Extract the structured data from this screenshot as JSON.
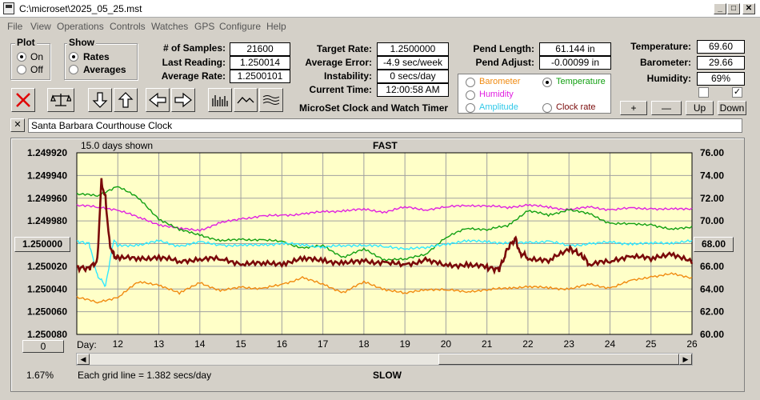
{
  "window": {
    "title": "C:\\microset\\2025_05_25.mst",
    "min": "_",
    "max": "□",
    "close": "✕"
  },
  "menu": [
    "File",
    "View",
    "Operations",
    "Controls",
    "Watches",
    "GPS",
    "Configure",
    "Help"
  ],
  "plot": {
    "label": "Plot",
    "on": "On",
    "off": "Off"
  },
  "show": {
    "label": "Show",
    "rates": "Rates",
    "averages": "Averages"
  },
  "stats": {
    "samples_label": "# of Samples:",
    "samples": "21600",
    "last_label": "Last Reading:",
    "last": "1.250014",
    "avg_label": "Average Rate:",
    "avg": "1.2500101",
    "target_label": "Target Rate:",
    "target": "1.2500000",
    "error_label": "Average Error:",
    "error": "-4.9 sec/week",
    "instab_label": "Instability:",
    "instab": "0 secs/day",
    "time_label": "Current Time:",
    "time": "12:00:58 AM",
    "pend_label": "Pend Length:",
    "pend": "61.144 in",
    "adjust_label": "Pend Adjust:",
    "adjust": "-0.00099 in",
    "temp_label": "Temperature:",
    "temp": "69.60",
    "baro_label": "Barometer:",
    "baro": "29.66",
    "hum_label": "Humidity:",
    "hum": "69%"
  },
  "app_name": "MicroSet Clock and Watch Timer",
  "series_select": {
    "barometer": "Barometer",
    "temperature": "Temperature",
    "humidity": "Humidity",
    "amplitude": "Amplitude",
    "clock_rate": "Clock rate"
  },
  "adjust_buttons": {
    "plus": "+",
    "minus": "—",
    "up": "Up",
    "down": "Down"
  },
  "clock_name": "Santa Barbara Courthouse Clock",
  "header": {
    "days_shown": "15.0 days shown",
    "fast": "FAST",
    "slow": "SLOW",
    "grid_note": "Each grid line = 1.382 secs/day",
    "pct": "1.67%",
    "left_btn": "1.250000",
    "right_btn": "68.00",
    "zero_btn": "0",
    "day_label": "Day:"
  },
  "colors": {
    "rate": "#7a0a0a",
    "temperature": "#12a012",
    "barometer": "#f08a10",
    "humidity": "#e020e0",
    "amplitude": "#30e8ff",
    "plot_bg": "#ffffc8"
  },
  "chart_data": {
    "type": "line",
    "x_label": "Day:",
    "x_ticks": [
      "12",
      "13",
      "14",
      "15",
      "16",
      "17",
      "18",
      "19",
      "20",
      "21",
      "22",
      "23",
      "24",
      "25",
      "26"
    ],
    "x_range": [
      11,
      26
    ],
    "y_left_ticks": [
      "1.249920",
      "1.249940",
      "1.249960",
      "1.249980",
      "1.250000",
      "1.250020",
      "1.250040",
      "1.250060",
      "1.250080"
    ],
    "y_left_range": [
      1.24992,
      1.25008
    ],
    "y_left_reversed": true,
    "y_right_ticks": [
      "76.00",
      "74.00",
      "72.00",
      "70.00",
      "68.00",
      "66.00",
      "64.00",
      "62.00",
      "60.00"
    ],
    "y_right_range": [
      60,
      76
    ],
    "grid": true,
    "series": [
      {
        "key": "rate",
        "x": [
          11,
          11.3,
          11.5,
          11.6,
          11.7,
          11.8,
          11.9,
          12,
          12.5,
          13,
          13.5,
          14,
          14.5,
          15,
          15.5,
          16,
          16.5,
          17,
          17.5,
          18,
          18.5,
          19,
          19.5,
          20,
          20.5,
          21,
          21.3,
          21.5,
          21.7,
          21.8,
          22,
          22.5,
          23,
          23.3,
          23.5,
          24,
          24.5,
          25,
          25.5,
          26
        ],
        "y": [
          1.250021,
          1.250022,
          1.250015,
          1.249945,
          1.24996,
          1.25,
          1.25001,
          1.250013,
          1.250013,
          1.250012,
          1.250016,
          1.250013,
          1.250014,
          1.250017,
          1.250018,
          1.250017,
          1.250014,
          1.250014,
          1.250018,
          1.250015,
          1.250017,
          1.250019,
          1.250014,
          1.25002,
          1.250018,
          1.250021,
          1.250023,
          1.250005,
          1.249995,
          1.250008,
          1.250012,
          1.250016,
          1.250004,
          1.25001,
          1.250018,
          1.250016,
          1.25001,
          1.250014,
          1.250008,
          1.250017
        ]
      },
      {
        "key": "temperature",
        "x": [
          11,
          11.5,
          12,
          12.5,
          13,
          13.5,
          14,
          14.5,
          15,
          15.5,
          16,
          16.5,
          17,
          17.5,
          18,
          18.5,
          19,
          19.5,
          20,
          20.5,
          21,
          21.5,
          22,
          22.5,
          23,
          23.5,
          24,
          24.5,
          25,
          25.5,
          26
        ],
        "y": [
          72.4,
          72.2,
          73.1,
          72.0,
          70.2,
          69.2,
          68.8,
          68.2,
          68.4,
          68.3,
          68.2,
          67.6,
          67.8,
          66.8,
          67.5,
          66.6,
          66.6,
          67.1,
          68.5,
          69.4,
          69.2,
          69.6,
          70.9,
          70.5,
          71.0,
          70.6,
          69.8,
          69.7,
          69.7,
          69.2,
          69.5
        ]
      },
      {
        "key": "barometer",
        "x": [
          11,
          11.5,
          12,
          12.5,
          13,
          13.5,
          14,
          14.5,
          15,
          15.5,
          16,
          16.5,
          17,
          17.5,
          18,
          18.5,
          19,
          19.5,
          20,
          20.5,
          21,
          21.5,
          22,
          22.5,
          23,
          23.5,
          24,
          24.5,
          25,
          25.5,
          26
        ],
        "y": [
          63.3,
          62.8,
          63.3,
          64.6,
          64.4,
          63.6,
          64.6,
          63.8,
          64.2,
          64.0,
          64.4,
          65.0,
          64.4,
          63.7,
          64.6,
          64.0,
          63.6,
          64.0,
          63.9,
          63.8,
          63.9,
          64.1,
          64.2,
          64.1,
          64.0,
          64.4,
          64.1,
          64.7,
          65.1,
          65.3,
          65.0
        ]
      },
      {
        "key": "humidity",
        "x": [
          11,
          11.5,
          12,
          12.5,
          13,
          13.5,
          14,
          14.5,
          15,
          15.5,
          16,
          16.5,
          17,
          17.5,
          18,
          18.5,
          19,
          19.5,
          20,
          20.5,
          21,
          21.5,
          22,
          22.5,
          23,
          23.5,
          24,
          24.5,
          25,
          25.5,
          26
        ],
        "y": [
          71.4,
          71.2,
          71.0,
          70.3,
          69.7,
          69.3,
          69.2,
          69.8,
          70.2,
          70.4,
          70.5,
          70.6,
          70.8,
          70.9,
          71.0,
          70.8,
          71.2,
          71.0,
          71.2,
          71.4,
          71.3,
          71.2,
          71.4,
          71.2,
          71.0,
          71.2,
          71.0,
          71.1,
          71.1,
          71.0,
          71.1
        ]
      },
      {
        "key": "amplitude",
        "x": [
          11,
          11.3,
          11.5,
          11.7,
          11.9,
          12,
          12.5,
          13,
          13.5,
          14,
          14.5,
          15,
          15.5,
          16,
          16.5,
          17,
          17.5,
          18,
          18.5,
          19,
          19.5,
          20,
          20.5,
          21,
          21.5,
          22,
          22.5,
          23,
          23.5,
          24,
          24.5,
          25,
          25.5,
          26
        ],
        "y": [
          68.2,
          68.0,
          65.2,
          64.3,
          68.3,
          67.8,
          67.9,
          68.2,
          67.8,
          68.1,
          67.9,
          67.8,
          67.9,
          68.0,
          67.9,
          67.7,
          67.8,
          67.9,
          67.7,
          67.6,
          67.6,
          68.0,
          68.2,
          68.2,
          68.0,
          68.1,
          68.2,
          67.8,
          68.0,
          68.1,
          68.0,
          68.0,
          68.1,
          68.2
        ]
      }
    ]
  }
}
